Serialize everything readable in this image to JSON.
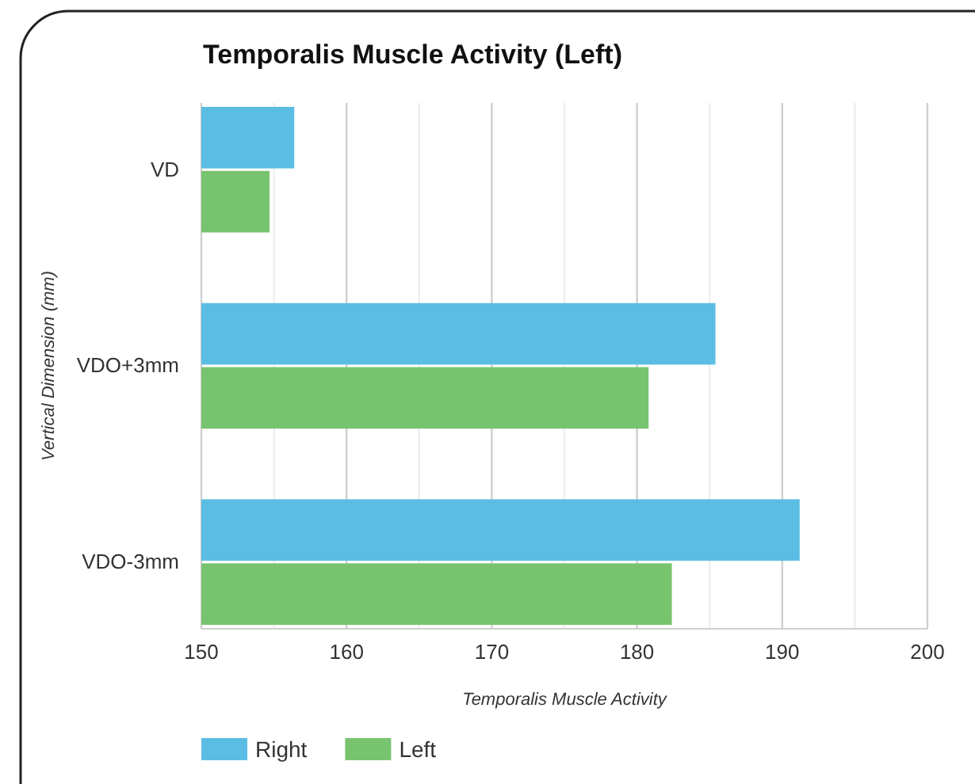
{
  "chart_data": {
    "type": "bar",
    "orientation": "horizontal",
    "title": "Temporalis Muscle Activity (Left)",
    "xlabel": "Temporalis Muscle Activity",
    "ylabel": "Vertical Dimension (mm)",
    "categories": [
      "VD",
      "VDO+3mm",
      "VDO-3mm"
    ],
    "series": [
      {
        "name": "Right",
        "color": "#5bbde4",
        "values": [
          156.4,
          185.4,
          191.2
        ]
      },
      {
        "name": "Left",
        "color": "#78c36e",
        "values": [
          154.7,
          180.8,
          182.4
        ]
      }
    ],
    "xlim": [
      150,
      200
    ],
    "xticks": [
      150,
      {
        "value": 155,
        "label": null
      },
      160,
      {
        "value": 165,
        "label": null
      },
      170,
      {
        "value": 175,
        "label": null
      },
      180,
      {
        "value": 185,
        "label": null
      },
      190,
      {
        "value": 195,
        "label": null
      },
      200
    ],
    "grid": true,
    "legend": "bottom left"
  }
}
